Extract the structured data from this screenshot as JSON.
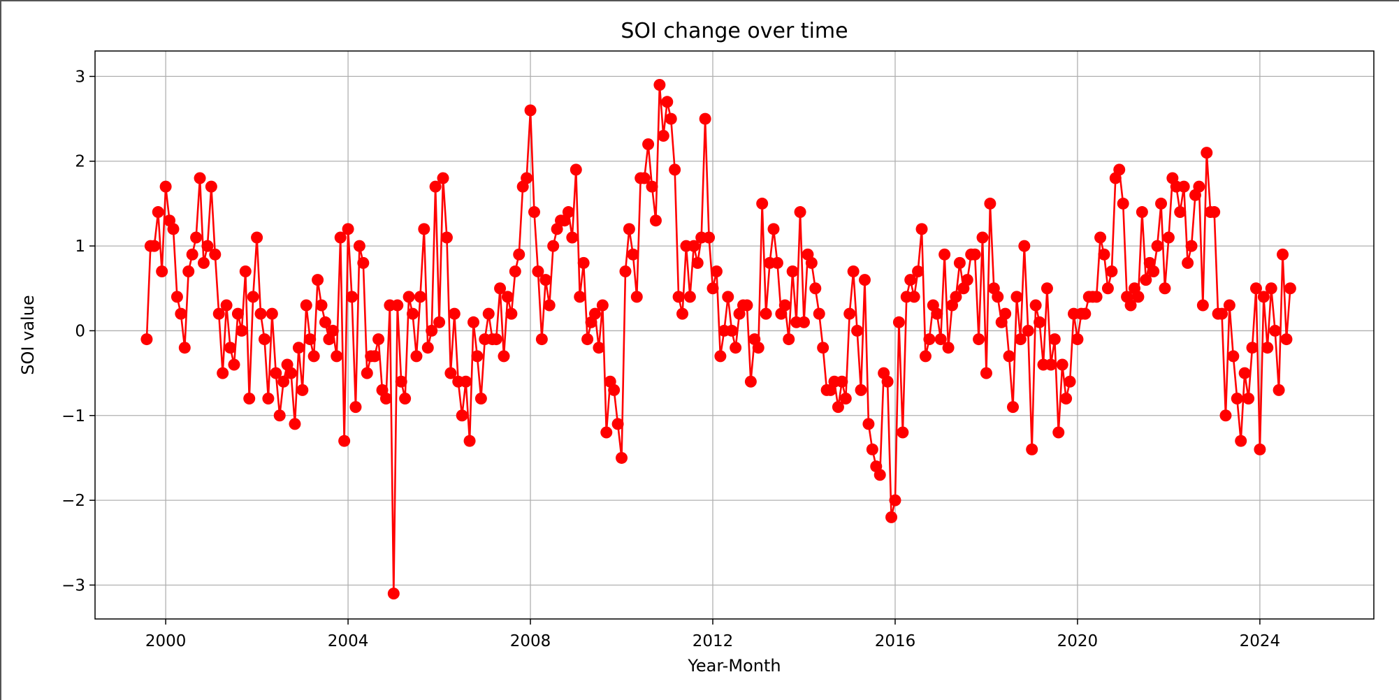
{
  "chart_data": {
    "type": "line",
    "title": "SOI change over time",
    "xlabel": "Year-Month",
    "ylabel": "SOI value",
    "xlim": [
      1998.45,
      2026.5
    ],
    "ylim": [
      -3.4,
      3.3
    ],
    "x_ticks": [
      2000,
      2004,
      2008,
      2012,
      2016,
      2020,
      2024
    ],
    "x_tick_labels": [
      "2000",
      "2004",
      "2008",
      "2012",
      "2016",
      "2020",
      "2024"
    ],
    "y_ticks": [
      3,
      2,
      1,
      0,
      -1,
      -2,
      -3
    ],
    "y_tick_labels": [
      "3",
      "2",
      "1",
      "0",
      "−1",
      "−2",
      "−3"
    ],
    "grid": true,
    "line_color": "#ff0000",
    "marker": "circle",
    "series": [
      {
        "start": "1999-08",
        "interval": "month",
        "values": [
          -0.1,
          1.0,
          1.0,
          1.4,
          0.7,
          1.7,
          1.3,
          1.2,
          0.4,
          0.2,
          -0.2,
          0.7,
          0.9,
          1.1,
          1.8,
          0.8,
          1.0,
          1.7,
          0.9,
          0.2,
          -0.5,
          0.3,
          -0.2,
          -0.4,
          0.2,
          0.0,
          0.7,
          -0.8,
          0.4,
          1.1,
          0.2,
          -0.1,
          -0.8,
          0.2,
          -0.5,
          -1.0,
          -0.6,
          -0.4,
          -0.5,
          -1.1,
          -0.2,
          -0.7,
          0.3,
          -0.1,
          -0.3,
          0.6,
          0.3,
          0.1,
          -0.1,
          0.0,
          -0.3,
          1.1,
          -1.3,
          1.2,
          0.4,
          -0.9,
          1.0,
          0.8,
          -0.5,
          -0.3,
          -0.3,
          -0.1,
          -0.7,
          -0.8,
          0.3,
          -3.1,
          0.3,
          -0.6,
          -0.8,
          0.4,
          0.2,
          -0.3,
          0.4,
          1.2,
          -0.2,
          0.0,
          1.7,
          0.1,
          1.8,
          1.1,
          -0.5,
          0.2,
          -0.6,
          -1.0,
          -0.6,
          -1.3,
          0.1,
          -0.3,
          -0.8,
          -0.1,
          0.2,
          -0.1,
          -0.1,
          0.5,
          -0.3,
          0.4,
          0.2,
          0.7,
          0.9,
          1.7,
          1.8,
          2.6,
          1.4,
          0.7,
          -0.1,
          0.6,
          0.3,
          1.0,
          1.2,
          1.3,
          1.3,
          1.4,
          1.1,
          1.9,
          0.4,
          0.8,
          -0.1,
          0.1,
          0.2,
          -0.2,
          0.3,
          -1.2,
          -0.6,
          -0.7,
          -1.1,
          -1.5,
          0.7,
          1.2,
          0.9,
          0.4,
          1.8,
          1.8,
          2.2,
          1.7,
          1.3,
          2.9,
          2.3,
          2.7,
          2.5,
          1.9,
          0.4,
          0.2,
          1.0,
          0.4,
          1.0,
          0.8,
          1.1,
          2.5,
          1.1,
          0.5,
          0.7,
          -0.3,
          0.0,
          0.4,
          0.0,
          -0.2,
          0.2,
          0.3,
          0.3,
          -0.6,
          -0.1,
          -0.2,
          1.5,
          0.2,
          0.8,
          1.2,
          0.8,
          0.2,
          0.3,
          -0.1,
          0.7,
          0.1,
          1.4,
          0.1,
          0.9,
          0.8,
          0.5,
          0.2,
          -0.2,
          -0.7,
          -0.7,
          -0.6,
          -0.9,
          -0.6,
          -0.8,
          0.2,
          0.7,
          0.0,
          -0.7,
          0.6,
          -1.1,
          -1.4,
          -1.6,
          -1.7,
          -0.5,
          -0.6,
          -2.2,
          -2.0,
          0.1,
          -1.2,
          0.4,
          0.6,
          0.4,
          0.7,
          1.2,
          -0.3,
          -0.1,
          0.3,
          0.2,
          -0.1,
          0.9,
          -0.2,
          0.3,
          0.4,
          0.8,
          0.5,
          0.6,
          0.9,
          0.9,
          -0.1,
          1.1,
          -0.5,
          1.5,
          0.5,
          0.4,
          0.1,
          0.2,
          -0.3,
          -0.9,
          0.4,
          -0.1,
          1.0,
          0.0,
          -1.4,
          0.3,
          0.1,
          -0.4,
          0.5,
          -0.4,
          -0.1,
          -1.2,
          -0.4,
          -0.8,
          -0.6,
          0.2,
          -0.1,
          0.2,
          0.2,
          0.4,
          0.4,
          0.4,
          1.1,
          0.9,
          0.5,
          0.7,
          1.8,
          1.9,
          1.5,
          0.4,
          0.3,
          0.5,
          0.4,
          1.4,
          0.6,
          0.8,
          0.7,
          1.0,
          1.5,
          0.5,
          1.1,
          1.8,
          1.7,
          1.4,
          1.7,
          0.8,
          1.0,
          1.6,
          1.7,
          0.3,
          2.1,
          1.4,
          1.4,
          0.2,
          0.2,
          -1.0,
          0.3,
          -0.3,
          -0.8,
          -1.3,
          -0.5,
          -0.8,
          -0.2,
          0.5,
          -1.4,
          0.4,
          -0.2,
          0.5,
          0.0,
          -0.7,
          0.9,
          -0.1,
          0.5
        ]
      }
    ]
  }
}
